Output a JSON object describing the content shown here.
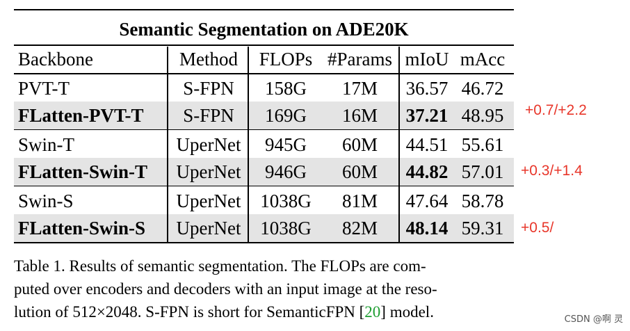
{
  "table": {
    "title": "Semantic Segmentation on ADE20K",
    "headers": {
      "backbone": "Backbone",
      "method": "Method",
      "flops": "FLOPs",
      "params": "#Params",
      "miou": "mIoU",
      "macc": "mAcc"
    },
    "rows": [
      {
        "backbone": "PVT-T",
        "method": "S-FPN",
        "flops": "158G",
        "params": "17M",
        "miou": "36.57",
        "macc": "46.72",
        "highlight": false
      },
      {
        "backbone": "FLatten-PVT-T",
        "method": "S-FPN",
        "flops": "169G",
        "params": "16M",
        "miou": "37.21",
        "macc": "48.95",
        "highlight": true
      },
      {
        "backbone": "Swin-T",
        "method": "UperNet",
        "flops": "945G",
        "params": "60M",
        "miou": "44.51",
        "macc": "55.61",
        "highlight": false
      },
      {
        "backbone": "FLatten-Swin-T",
        "method": "UperNet",
        "flops": "946G",
        "params": "60M",
        "miou": "44.82",
        "macc": "57.01",
        "highlight": true
      },
      {
        "backbone": "Swin-S",
        "method": "UperNet",
        "flops": "1038G",
        "params": "81M",
        "miou": "47.64",
        "macc": "58.78",
        "highlight": false
      },
      {
        "backbone": "FLatten-Swin-S",
        "method": "UperNet",
        "flops": "1038G",
        "params": "82M",
        "miou": "48.14",
        "macc": "59.31",
        "highlight": true
      }
    ]
  },
  "annotations": {
    "pvt": "+0.7/+2.2",
    "swin_t": "+0.3/+1.4",
    "swin_s": "+0.5/",
    "color": "#e8362a"
  },
  "caption": {
    "line1": "Table 1. Results of semantic segmentation.  The FLOPs are com-",
    "line2": "puted over encoders and decoders with an input image at the reso-",
    "line3_pre": "lution of 512×2048. S-FPN is short for SemanticFPN [",
    "line3_ref": "20",
    "line3_post": "] model.",
    "ref_color": "#1e9e32"
  },
  "watermark": "CSDN @啊  灵"
}
